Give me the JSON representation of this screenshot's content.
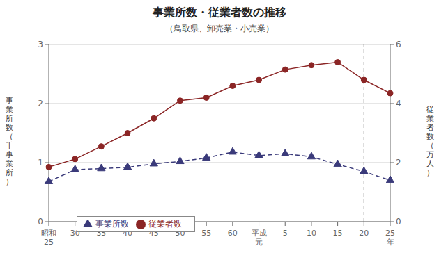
{
  "chart_data": {
    "type": "line",
    "title": "事業所数・従業者数の推移",
    "subtitle": "（鳥取県、卸売業・小売業）",
    "y_label": "事\n業\n所\n数\n（\n千\n事\n業\n所\n）",
    "y2_label": "従\n業\n者\n数\n（\n万\n人\n）",
    "categories": [
      "昭和\n25",
      "30",
      "35",
      "40",
      "45",
      "50",
      "55",
      "60",
      "平成\n元",
      "5",
      "10",
      "15",
      "20",
      "25\n年"
    ],
    "series": [
      {
        "name": "事業所数",
        "color": "#3a3a7a",
        "marker": "triangle",
        "line_style": "dashed",
        "values": [
          0.68,
          0.88,
          0.9,
          0.92,
          0.98,
          1.02,
          1.08,
          1.18,
          1.12,
          1.15,
          1.1,
          0.97,
          0.85,
          0.7
        ]
      },
      {
        "name": "従業者数",
        "color": "#8b2525",
        "marker": "circle",
        "line_style": "solid",
        "axis": "y2",
        "values": [
          1.85,
          2.12,
          2.55,
          3.0,
          3.5,
          4.1,
          4.2,
          4.6,
          4.8,
          5.15,
          5.3,
          5.4,
          4.8,
          4.35
        ]
      }
    ],
    "ylim": [
      0,
      3
    ],
    "yticks": [
      0,
      1,
      2,
      3
    ],
    "y2lim": [
      0,
      6
    ],
    "y2ticks": [
      0,
      2,
      4,
      6
    ],
    "grid": true,
    "legend": "lower left",
    "annotations": [
      {
        "x": "20",
        "line_style": "dashed"
      }
    ]
  }
}
